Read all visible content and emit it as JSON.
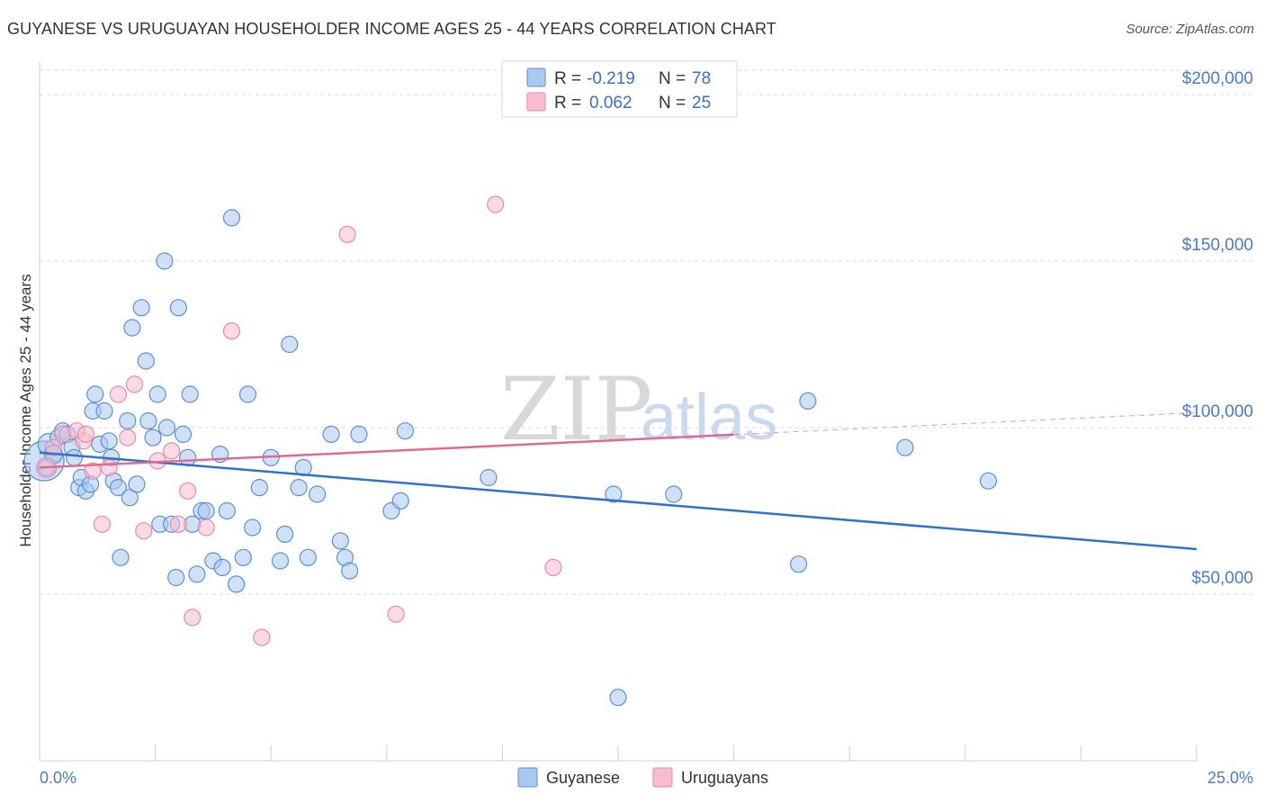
{
  "header": {
    "title": "GUYANESE VS URUGUAYAN HOUSEHOLDER INCOME AGES 25 - 44 YEARS CORRELATION CHART",
    "source": "Source: ZipAtlas.com"
  },
  "watermark": {
    "part1": "ZIP",
    "part2": "atlas"
  },
  "colors": {
    "guyanese_fill": "#aac8f0",
    "guyanese_stroke": "#5b8fd6",
    "guyanese_line": "#2f72c8",
    "uruguayan_fill": "#f7bcd0",
    "uruguayan_stroke": "#e58aa8",
    "uruguayan_line": "#e06a94",
    "grid": "#d8d8d8",
    "tick_text": "#4a7cc6"
  },
  "legend": {
    "rows": [
      {
        "r_label": "R =",
        "r_value": "-0.219",
        "n_label": "N =",
        "n_value": "78"
      },
      {
        "r_label": "R =",
        "r_value": "0.062",
        "n_label": "N =",
        "n_value": "25"
      }
    ],
    "bottom": [
      "Guyanese",
      "Uruguayans"
    ]
  },
  "chart_data": {
    "type": "scatter",
    "title": "GUYANESE VS URUGUAYAN HOUSEHOLDER INCOME AGES 25 - 44 YEARS CORRELATION CHART",
    "xlabel": "",
    "ylabel": "Householder Income Ages 25 - 44 years",
    "xlim": [
      0,
      25
    ],
    "ylim": [
      0,
      210000
    ],
    "x_tick_labels": [
      "0.0%",
      "25.0%"
    ],
    "y_ticks": [
      50000,
      100000,
      150000,
      200000
    ],
    "y_tick_labels": [
      "$50,000",
      "$100,000",
      "$150,000",
      "$200,000"
    ],
    "grid": true,
    "legend_position": "top-center",
    "series": [
      {
        "name": "Guyanese",
        "trend": {
          "x": [
            0,
            25
          ],
          "y": [
            92500,
            63500
          ],
          "dashed_from": null
        },
        "points": [
          [
            0.1,
            90000,
            22
          ],
          [
            0.2,
            95000,
            12
          ],
          [
            0.3,
            92000,
            10
          ],
          [
            0.4,
            97000,
            9
          ],
          [
            0.5,
            99000,
            9
          ],
          [
            0.6,
            98000,
            9
          ],
          [
            0.7,
            94000,
            9
          ],
          [
            0.75,
            91000,
            9
          ],
          [
            0.85,
            82000,
            9
          ],
          [
            0.9,
            85000,
            9
          ],
          [
            1.0,
            81000,
            9
          ],
          [
            1.1,
            83000,
            9
          ],
          [
            1.15,
            105000,
            9
          ],
          [
            1.2,
            110000,
            9
          ],
          [
            1.3,
            95000,
            9
          ],
          [
            1.4,
            105000,
            9
          ],
          [
            1.5,
            96000,
            9
          ],
          [
            1.55,
            91000,
            9
          ],
          [
            1.6,
            84000,
            9
          ],
          [
            1.7,
            82000,
            9
          ],
          [
            1.75,
            61000,
            9
          ],
          [
            1.9,
            102000,
            9
          ],
          [
            1.95,
            79000,
            9
          ],
          [
            2.0,
            130000,
            9
          ],
          [
            2.1,
            83000,
            9
          ],
          [
            2.2,
            136000,
            9
          ],
          [
            2.3,
            120000,
            9
          ],
          [
            2.35,
            102000,
            9
          ],
          [
            2.45,
            97000,
            9
          ],
          [
            2.55,
            110000,
            9
          ],
          [
            2.6,
            71000,
            9
          ],
          [
            2.7,
            150000,
            9
          ],
          [
            2.75,
            100000,
            9
          ],
          [
            2.85,
            71000,
            9
          ],
          [
            2.95,
            55000,
            9
          ],
          [
            3.0,
            136000,
            9
          ],
          [
            3.1,
            98000,
            9
          ],
          [
            3.2,
            91000,
            9
          ],
          [
            3.25,
            110000,
            9
          ],
          [
            3.3,
            71000,
            9
          ],
          [
            3.4,
            56000,
            9
          ],
          [
            3.5,
            75000,
            9
          ],
          [
            3.6,
            75000,
            9
          ],
          [
            3.75,
            60000,
            9
          ],
          [
            3.9,
            92000,
            9
          ],
          [
            3.95,
            58000,
            9
          ],
          [
            4.05,
            75000,
            9
          ],
          [
            4.15,
            163000,
            9
          ],
          [
            4.25,
            53000,
            9
          ],
          [
            4.4,
            61000,
            9
          ],
          [
            4.5,
            110000,
            9
          ],
          [
            4.6,
            70000,
            9
          ],
          [
            4.75,
            82000,
            9
          ],
          [
            5.0,
            91000,
            9
          ],
          [
            5.2,
            60000,
            9
          ],
          [
            5.3,
            68000,
            9
          ],
          [
            5.4,
            125000,
            9
          ],
          [
            5.6,
            82000,
            9
          ],
          [
            5.7,
            88000,
            9
          ],
          [
            5.8,
            61000,
            9
          ],
          [
            6.0,
            80000,
            9
          ],
          [
            6.3,
            98000,
            9
          ],
          [
            6.5,
            66000,
            9
          ],
          [
            6.6,
            61000,
            9
          ],
          [
            6.7,
            57000,
            9
          ],
          [
            6.9,
            98000,
            9
          ],
          [
            7.6,
            75000,
            9
          ],
          [
            7.8,
            78000,
            9
          ],
          [
            7.9,
            99000,
            9
          ],
          [
            9.7,
            85000,
            9
          ],
          [
            12.4,
            80000,
            9
          ],
          [
            12.5,
            19000,
            9
          ],
          [
            13.7,
            80000,
            9
          ],
          [
            16.4,
            59000,
            9
          ],
          [
            16.6,
            108000,
            9
          ],
          [
            18.7,
            94000,
            9
          ],
          [
            20.5,
            84000,
            9
          ],
          [
            0.15,
            88000,
            9
          ]
        ]
      },
      {
        "name": "Uruguayans",
        "trend": {
          "x": [
            0,
            25
          ],
          "y": [
            88000,
            104500
          ],
          "dashed_from": 15
        },
        "points": [
          [
            0.15,
            88000,
            11
          ],
          [
            0.3,
            94000,
            9
          ],
          [
            0.5,
            98000,
            9
          ],
          [
            0.8,
            99000,
            9
          ],
          [
            0.95,
            96000,
            9
          ],
          [
            1.0,
            98000,
            9
          ],
          [
            1.15,
            87000,
            9
          ],
          [
            1.35,
            71000,
            9
          ],
          [
            1.5,
            88000,
            9
          ],
          [
            1.7,
            110000,
            9
          ],
          [
            1.9,
            97000,
            9
          ],
          [
            2.05,
            113000,
            9
          ],
          [
            2.25,
            69000,
            9
          ],
          [
            2.55,
            90000,
            9
          ],
          [
            2.85,
            93000,
            9
          ],
          [
            3.0,
            71000,
            9
          ],
          [
            3.2,
            81000,
            9
          ],
          [
            3.3,
            43000,
            9
          ],
          [
            3.6,
            70000,
            9
          ],
          [
            4.15,
            129000,
            9
          ],
          [
            4.8,
            37000,
            9
          ],
          [
            6.65,
            158000,
            9
          ],
          [
            7.7,
            44000,
            9
          ],
          [
            9.85,
            167000,
            9
          ],
          [
            11.1,
            58000,
            9
          ]
        ]
      }
    ]
  }
}
